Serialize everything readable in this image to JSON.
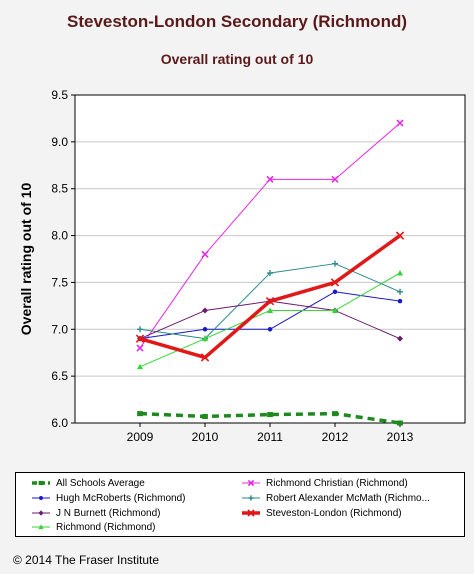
{
  "chart_data": {
    "type": "line",
    "title": "Steveston-London Secondary (Richmond)",
    "subtitle": "Overall rating out of 10",
    "ylabel": "Overall rating out of 10",
    "xlabel": "",
    "ylim": [
      6.0,
      9.5
    ],
    "yticks": [
      "6.0",
      "6.5",
      "7.0",
      "7.5",
      "8.0",
      "8.5",
      "9.0",
      "9.5"
    ],
    "categories": [
      "2009",
      "2010",
      "2011",
      "2012",
      "2013"
    ],
    "grid": "horizontal",
    "legend_position": "bottom",
    "series": [
      {
        "name": "All Schools Average",
        "values": [
          6.1,
          6.07,
          6.09,
          6.1,
          6.0
        ],
        "color": "#1e8a1e",
        "marker": "square",
        "style": "dashed-thick"
      },
      {
        "name": "Richmond Christian (Richmond)",
        "values": [
          6.8,
          7.8,
          8.6,
          8.6,
          9.2
        ],
        "color": "#e629e6",
        "marker": "x",
        "style": "solid"
      },
      {
        "name": "Hugh McRoberts (Richmond)",
        "values": [
          6.9,
          7.0,
          7.0,
          7.4,
          7.3
        ],
        "color": "#1818c8",
        "marker": "circle",
        "style": "solid"
      },
      {
        "name": "Robert Alexander McMath (Richmond)",
        "display_name": "Robert Alexander  McMath (Richmo...",
        "values": [
          7.0,
          6.9,
          7.6,
          7.7,
          7.4
        ],
        "color": "#2a8a8a",
        "marker": "plus",
        "style": "solid"
      },
      {
        "name": "J N Burnett (Richmond)",
        "values": [
          6.9,
          7.2,
          7.3,
          7.2,
          6.9
        ],
        "color": "#6e1a6e",
        "marker": "diamond",
        "style": "solid"
      },
      {
        "name": "Steveston-London (Richmond)",
        "values": [
          6.9,
          6.7,
          7.3,
          7.5,
          8.0
        ],
        "color": "#e01818",
        "marker": "x",
        "style": "solid-thick"
      },
      {
        "name": "Richmond (Richmond)",
        "values": [
          6.6,
          6.9,
          7.2,
          7.2,
          7.6
        ],
        "color": "#33d633",
        "marker": "triangle",
        "style": "solid"
      }
    ]
  },
  "footer": {
    "copyright": "© 2014 The Fraser Institute"
  }
}
